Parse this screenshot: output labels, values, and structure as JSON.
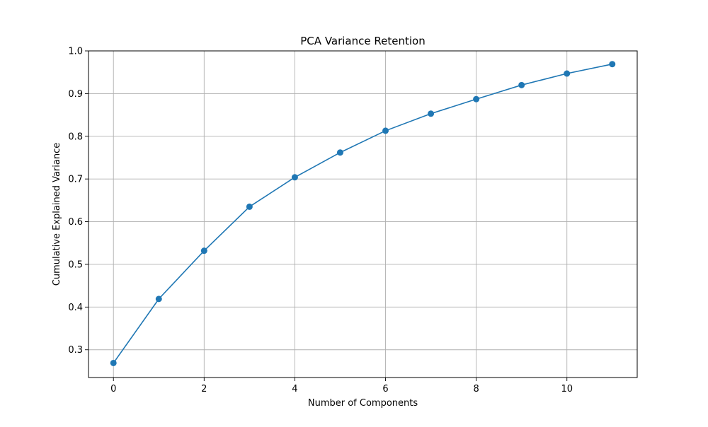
{
  "chart_data": {
    "type": "line",
    "title": "PCA Variance Retention",
    "xlabel": "Number of Components",
    "ylabel": "Cumulative Explained Variance",
    "x": [
      0,
      1,
      2,
      3,
      4,
      5,
      6,
      7,
      8,
      9,
      10,
      11
    ],
    "series": [
      {
        "values": [
          0.269,
          0.419,
          0.532,
          0.635,
          0.704,
          0.762,
          0.813,
          0.853,
          0.887,
          0.92,
          0.947,
          0.969
        ],
        "color": "#1f77b4",
        "marker": "circle"
      }
    ],
    "xlim": [
      -0.55,
      11.55
    ],
    "ylim": [
      0.235,
      1.0
    ],
    "xticks": [
      0,
      2,
      4,
      6,
      8,
      10
    ],
    "yticks": [
      0.3,
      0.4,
      0.5,
      0.6,
      0.7,
      0.8,
      0.9,
      1.0
    ],
    "xtick_labels": [
      "0",
      "2",
      "4",
      "6",
      "8",
      "10"
    ],
    "ytick_labels": [
      "0.3",
      "0.4",
      "0.5",
      "0.6",
      "0.7",
      "0.8",
      "0.9",
      "1.0"
    ],
    "grid": true,
    "grid_color": "#b0b0b0"
  }
}
